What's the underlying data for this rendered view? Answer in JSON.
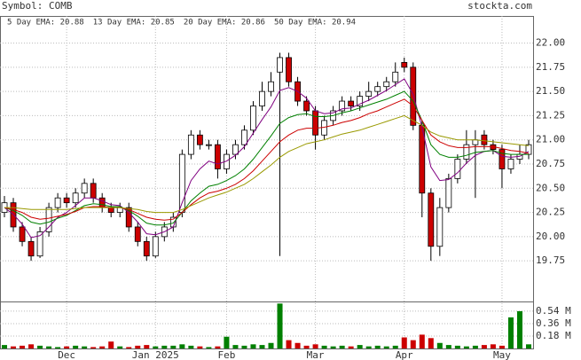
{
  "chart_data": {
    "type": "candlestick",
    "symbol": "Symbol: COMB",
    "source": "stockta.com",
    "categories": [
      null,
      null,
      null,
      null,
      null,
      null,
      null,
      "Dec",
      null,
      null,
      null,
      null,
      null,
      null,
      null,
      null,
      null,
      "Jan 2025",
      null,
      null,
      null,
      null,
      null,
      null,
      null,
      "Feb",
      null,
      null,
      null,
      null,
      null,
      null,
      null,
      null,
      null,
      "Mar",
      null,
      null,
      null,
      null,
      null,
      null,
      null,
      null,
      null,
      "Apr",
      null,
      null,
      null,
      null,
      null,
      null,
      null,
      null,
      null,
      null,
      "May",
      null,
      null,
      null
    ],
    "open": [
      20.25,
      20.35,
      20.1,
      19.95,
      19.8,
      20.05,
      20.3,
      20.4,
      20.35,
      20.45,
      20.55,
      20.4,
      20.3,
      20.25,
      20.3,
      20.1,
      19.95,
      19.8,
      20.0,
      20.1,
      20.25,
      20.85,
      21.05,
      20.95,
      20.95,
      20.7,
      20.85,
      20.95,
      21.1,
      21.35,
      21.5,
      21.7,
      21.85,
      21.6,
      21.4,
      21.3,
      21.05,
      21.2,
      21.3,
      21.4,
      21.35,
      21.45,
      21.5,
      21.55,
      21.6,
      21.8,
      21.75,
      21.15,
      20.45,
      19.9,
      20.3,
      20.6,
      20.8,
      20.95,
      21.05,
      20.95,
      20.9,
      20.7,
      20.8,
      20.85
    ],
    "high": [
      20.42,
      20.4,
      20.15,
      20.0,
      20.1,
      20.35,
      20.45,
      20.45,
      20.5,
      20.6,
      20.6,
      20.45,
      20.35,
      20.35,
      20.35,
      20.15,
      20.0,
      20.05,
      20.15,
      20.25,
      20.9,
      21.1,
      21.1,
      21.0,
      21.0,
      20.9,
      21.0,
      21.15,
      21.4,
      21.6,
      21.7,
      21.9,
      21.9,
      21.65,
      21.45,
      21.35,
      21.25,
      21.35,
      21.45,
      21.45,
      21.5,
      21.6,
      21.6,
      21.65,
      21.8,
      21.85,
      21.8,
      21.2,
      20.5,
      20.4,
      20.65,
      20.85,
      21.1,
      21.1,
      21.1,
      21.0,
      20.95,
      20.85,
      20.95,
      21.0
    ],
    "low": [
      20.2,
      20.05,
      19.9,
      19.75,
      19.78,
      20.0,
      20.25,
      20.3,
      20.3,
      20.4,
      20.35,
      20.25,
      20.2,
      20.2,
      20.05,
      19.9,
      19.75,
      19.78,
      19.95,
      20.05,
      20.2,
      20.8,
      20.9,
      20.9,
      20.6,
      20.65,
      20.8,
      20.9,
      21.05,
      21.3,
      21.45,
      19.8,
      21.55,
      21.35,
      21.25,
      20.9,
      21.0,
      21.15,
      21.25,
      21.3,
      21.3,
      21.4,
      21.45,
      21.5,
      21.55,
      21.7,
      21.1,
      20.2,
      19.75,
      19.8,
      20.25,
      20.55,
      20.75,
      20.4,
      20.9,
      20.85,
      20.5,
      20.65,
      20.75,
      20.8
    ],
    "close": [
      20.35,
      20.1,
      19.95,
      19.8,
      20.05,
      20.3,
      20.4,
      20.35,
      20.45,
      20.55,
      20.4,
      20.3,
      20.25,
      20.3,
      20.1,
      19.95,
      19.8,
      20.0,
      20.1,
      20.2,
      20.85,
      21.05,
      20.95,
      20.95,
      20.7,
      20.85,
      20.95,
      21.1,
      21.35,
      21.5,
      21.6,
      21.85,
      21.6,
      21.4,
      21.3,
      21.05,
      21.2,
      21.3,
      21.4,
      21.35,
      21.45,
      21.5,
      21.55,
      21.6,
      21.7,
      21.75,
      21.15,
      20.45,
      19.9,
      20.3,
      20.6,
      20.8,
      20.95,
      21.0,
      20.95,
      20.9,
      20.7,
      20.8,
      20.85,
      20.95
    ],
    "up_color": "#ffffff",
    "down_color": "#cc0000",
    "series": [
      {
        "name": "5 Day EMA: 20.88",
        "color": "#800080",
        "values": [
          20.3,
          20.23,
          20.13,
          19.99,
          20.01,
          20.1,
          20.2,
          20.25,
          20.32,
          20.4,
          20.4,
          20.37,
          20.33,
          20.32,
          20.25,
          20.15,
          20.03,
          20.02,
          20.05,
          20.1,
          20.35,
          20.58,
          20.7,
          20.78,
          20.75,
          20.78,
          20.84,
          20.93,
          21.07,
          21.21,
          21.34,
          21.51,
          21.54,
          21.5,
          21.43,
          21.3,
          21.27,
          21.28,
          21.32,
          21.33,
          21.37,
          21.41,
          21.46,
          21.51,
          21.57,
          21.63,
          21.47,
          21.13,
          20.72,
          20.58,
          20.59,
          20.66,
          20.76,
          20.84,
          20.88,
          20.89,
          20.83,
          20.82,
          20.83,
          20.88
        ]
      },
      {
        "name": "13 Day EMA: 20.85",
        "color": "#008000",
        "values": [
          20.3,
          20.27,
          20.22,
          20.15,
          20.13,
          20.15,
          20.19,
          20.22,
          20.27,
          20.32,
          20.34,
          20.33,
          20.31,
          20.31,
          20.27,
          20.21,
          20.14,
          20.12,
          20.12,
          20.14,
          20.25,
          20.37,
          20.45,
          20.52,
          20.54,
          20.58,
          20.63,
          20.7,
          20.8,
          20.92,
          21.04,
          21.17,
          21.23,
          21.26,
          21.27,
          21.24,
          21.24,
          21.25,
          21.28,
          21.3,
          21.33,
          21.36,
          21.39,
          21.42,
          21.46,
          21.5,
          21.4,
          21.2,
          20.95,
          20.85,
          20.82,
          20.82,
          20.84,
          20.87,
          20.88,
          20.89,
          20.86,
          20.85,
          20.85,
          20.85
        ]
      },
      {
        "name": "20 Day EMA: 20.86",
        "color": "#cc0000",
        "values": [
          20.3,
          20.28,
          20.25,
          20.2,
          20.18,
          20.19,
          20.21,
          20.23,
          20.26,
          20.3,
          20.31,
          20.31,
          20.3,
          20.3,
          20.28,
          20.24,
          20.2,
          20.18,
          20.17,
          20.18,
          20.25,
          20.33,
          20.4,
          20.45,
          20.47,
          20.5,
          20.54,
          20.6,
          20.68,
          20.78,
          20.88,
          20.98,
          21.05,
          21.1,
          21.12,
          21.12,
          21.13,
          21.15,
          21.18,
          21.2,
          21.23,
          21.27,
          21.3,
          21.34,
          21.38,
          21.42,
          21.35,
          21.2,
          21.05,
          20.98,
          20.94,
          20.92,
          20.92,
          20.93,
          20.93,
          20.93,
          20.91,
          20.89,
          20.88,
          20.86
        ]
      },
      {
        "name": "50 Day EMA: 20.94",
        "color": "#999900",
        "values": [
          20.3,
          20.3,
          20.29,
          20.28,
          20.28,
          20.28,
          20.28,
          20.28,
          20.29,
          20.3,
          20.3,
          20.3,
          20.3,
          20.3,
          20.29,
          20.28,
          20.26,
          20.25,
          20.25,
          20.25,
          20.28,
          20.32,
          20.36,
          20.4,
          20.43,
          20.46,
          20.5,
          20.54,
          20.6,
          20.67,
          20.74,
          20.82,
          20.88,
          20.92,
          20.96,
          20.98,
          21.0,
          21.03,
          21.06,
          21.08,
          21.1,
          21.13,
          21.16,
          21.19,
          21.22,
          21.25,
          21.2,
          21.15,
          21.08,
          21.04,
          21.02,
          21.0,
          21.0,
          21.0,
          20.99,
          20.98,
          20.97,
          20.96,
          20.95,
          20.94
        ]
      }
    ],
    "ylim": [
      19.33,
      22.28
    ],
    "yticks": [
      {
        "value": 19.75,
        "label": "19.75"
      },
      {
        "value": 20,
        "label": "20.00"
      },
      {
        "value": 20.25,
        "label": "20.25"
      },
      {
        "value": 20.5,
        "label": "20.50"
      },
      {
        "value": 20.75,
        "label": "20.75"
      },
      {
        "value": 21,
        "label": "21.00"
      },
      {
        "value": 21.25,
        "label": "21.25"
      },
      {
        "value": 21.5,
        "label": "21.50"
      },
      {
        "value": 21.75,
        "label": "21.75"
      },
      {
        "value": 22,
        "label": "22.00"
      }
    ],
    "volume": [
      0.05,
      0.03,
      0.04,
      0.06,
      0.04,
      0.03,
      0.02,
      0.03,
      0.04,
      0.03,
      0.02,
      0.03,
      0.1,
      0.03,
      0.02,
      0.04,
      0.05,
      0.03,
      0.04,
      0.04,
      0.06,
      0.04,
      0.03,
      0.02,
      0.03,
      0.17,
      0.05,
      0.04,
      0.06,
      0.05,
      0.08,
      0.65,
      0.12,
      0.08,
      0.04,
      0.06,
      0.04,
      0.03,
      0.04,
      0.03,
      0.05,
      0.03,
      0.04,
      0.03,
      0.04,
      0.16,
      0.12,
      0.2,
      0.15,
      0.08,
      0.05,
      0.04,
      0.03,
      0.04,
      0.05,
      0.06,
      0.04,
      0.45,
      0.54,
      0.06
    ],
    "volume_up_color": "#008000",
    "volume_down_color": "#cc0000",
    "y2lim": [
      0,
      0.68
    ],
    "y2ticks": [
      {
        "value": 0.18,
        "label": "0.18 M"
      },
      {
        "value": 0.36,
        "label": "0.36 M"
      },
      {
        "value": 0.54,
        "label": "0.54 M"
      }
    ],
    "grid": true
  }
}
